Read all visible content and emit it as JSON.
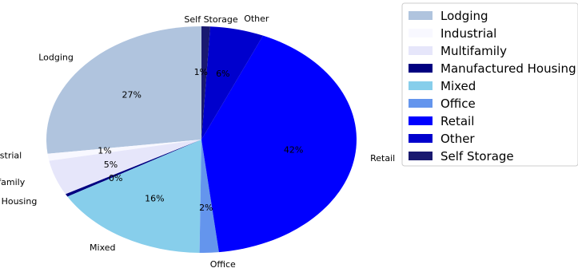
{
  "chart_data": {
    "type": "pie",
    "title": "",
    "legend_placement": "upper-right",
    "slices": [
      {
        "label": "Lodging",
        "pct_label": "27%",
        "value": 27.0,
        "color": "#b0c4de"
      },
      {
        "label": "Industrial",
        "pct_label": "1%",
        "value": 1.0,
        "color": "#f8f8ff"
      },
      {
        "label": "Multifamily",
        "pct_label": "5%",
        "value": 5.0,
        "color": "#e6e6fa"
      },
      {
        "label": "Manufactured Housing",
        "pct_label": "0%",
        "value": 0.4,
        "color": "#000080"
      },
      {
        "label": "Mixed",
        "pct_label": "16%",
        "value": 16.4,
        "color": "#87ceeb"
      },
      {
        "label": "Office",
        "pct_label": "2%",
        "value": 2.0,
        "color": "#6495ed"
      },
      {
        "label": "Retail",
        "pct_label": "42%",
        "value": 41.7,
        "color": "#0000ff"
      },
      {
        "label": "Other",
        "pct_label": "6%",
        "value": 5.6,
        "color": "#0000cd"
      },
      {
        "label": "Self Storage",
        "pct_label": "1%",
        "value": 0.9,
        "color": "#191970"
      }
    ]
  }
}
